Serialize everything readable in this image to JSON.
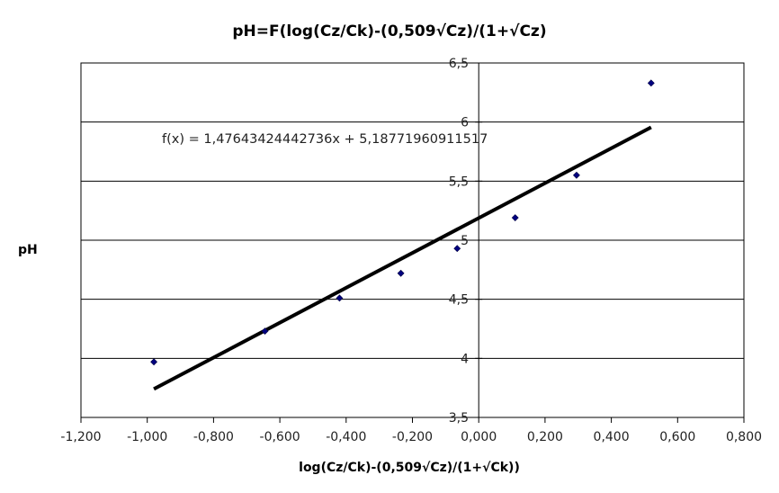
{
  "chart_data": {
    "type": "scatter",
    "title": "pH=F(log(Cz/Ck)-(0,509√Cz)/(1+√Cz)",
    "xlabel": "log(Cz/Ck)-(0,509√Cz)/(1+√Ck))",
    "ylabel": "pH",
    "xlim": [
      -1.2,
      0.8
    ],
    "ylim": [
      3.5,
      6.5
    ],
    "x_ticks": [
      "-1,200",
      "-1,000",
      "-0,800",
      "-0,600",
      "-0,400",
      "-0,200",
      "0,000",
      "0,200",
      "0,400",
      "0,600",
      "0,800"
    ],
    "y_ticks": [
      "3,5",
      "4",
      "4,5",
      "5",
      "5,5",
      "6",
      "6,5"
    ],
    "grid": "horizontal",
    "series": [
      {
        "points": [
          {
            "x": -0.98,
            "y": 3.97
          },
          {
            "x": -0.645,
            "y": 4.23
          },
          {
            "x": -0.42,
            "y": 4.51
          },
          {
            "x": -0.235,
            "y": 4.72
          },
          {
            "x": -0.065,
            "y": 4.93
          },
          {
            "x": 0.11,
            "y": 5.19
          },
          {
            "x": 0.295,
            "y": 5.55
          },
          {
            "x": 0.52,
            "y": 6.33
          }
        ],
        "color": "#000080",
        "marker": "diamond"
      }
    ],
    "trendline": {
      "slope": 1.47643424442736,
      "intercept": 5.18771960911517,
      "x_range": [
        -0.98,
        0.52
      ],
      "color": "#000000",
      "equation": "f(x) = 1,47643424442736x + 5,18771960911517"
    }
  }
}
